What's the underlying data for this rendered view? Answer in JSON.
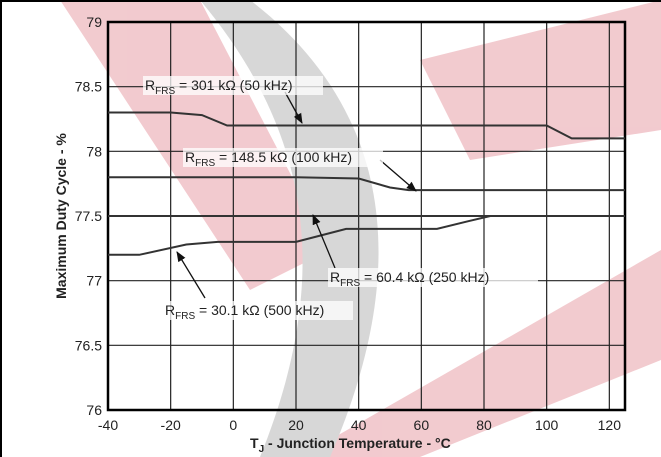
{
  "chart_data": {
    "type": "line",
    "ylabel": "Maximum Duty Cycle - %",
    "xlabel": {
      "main": "T",
      "sub": "J",
      "rest": " - Junction Temperature - °C"
    },
    "xlim": [
      -40,
      125
    ],
    "xticks": [
      -40,
      -20,
      0,
      20,
      40,
      60,
      80,
      100,
      120
    ],
    "ylim": [
      76,
      79
    ],
    "yticks": [
      76,
      76.5,
      77,
      77.5,
      78,
      78.5,
      79
    ],
    "grid": true,
    "series": [
      {
        "color": "#333333",
        "x": [
          -40,
          -20,
          -10,
          -2,
          20,
          40,
          60,
          80,
          100,
          108,
          125
        ],
        "values": [
          78.3,
          78.3,
          78.28,
          78.2,
          78.2,
          78.2,
          78.2,
          78.2,
          78.2,
          78.1,
          78.1
        ]
      },
      {
        "color": "#333333",
        "x": [
          -40,
          0,
          20,
          40,
          50,
          56,
          80,
          100,
          125
        ],
        "values": [
          77.8,
          77.8,
          77.8,
          77.79,
          77.72,
          77.7,
          77.7,
          77.7,
          77.7
        ]
      },
      {
        "color": "#333333",
        "x": [
          -40,
          0,
          40,
          80,
          125
        ],
        "values": [
          77.5,
          77.5,
          77.5,
          77.5,
          77.5
        ]
      },
      {
        "color": "#333333",
        "x": [
          -40,
          -30,
          -15,
          -5,
          20,
          28,
          36,
          65,
          75,
          82,
          100,
          125
        ],
        "values": [
          77.2,
          77.2,
          77.28,
          77.3,
          77.3,
          77.35,
          77.4,
          77.4,
          77.46,
          77.5,
          77.5,
          77.5
        ]
      }
    ],
    "annotations": [
      {
        "main": "R",
        "sub": "FRS",
        "rest": " = 301 kΩ (50 kHz)"
      },
      {
        "main": "R",
        "sub": "FRS",
        "rest": " = 148.5 kΩ (100 kHz)"
      },
      {
        "main": "R",
        "sub": "FRS",
        "rest": " = 60.4 kΩ (250 kHz)"
      },
      {
        "main": "R",
        "sub": "FRS",
        "rest": " = 30.1 kΩ (500 kHz)"
      }
    ]
  }
}
